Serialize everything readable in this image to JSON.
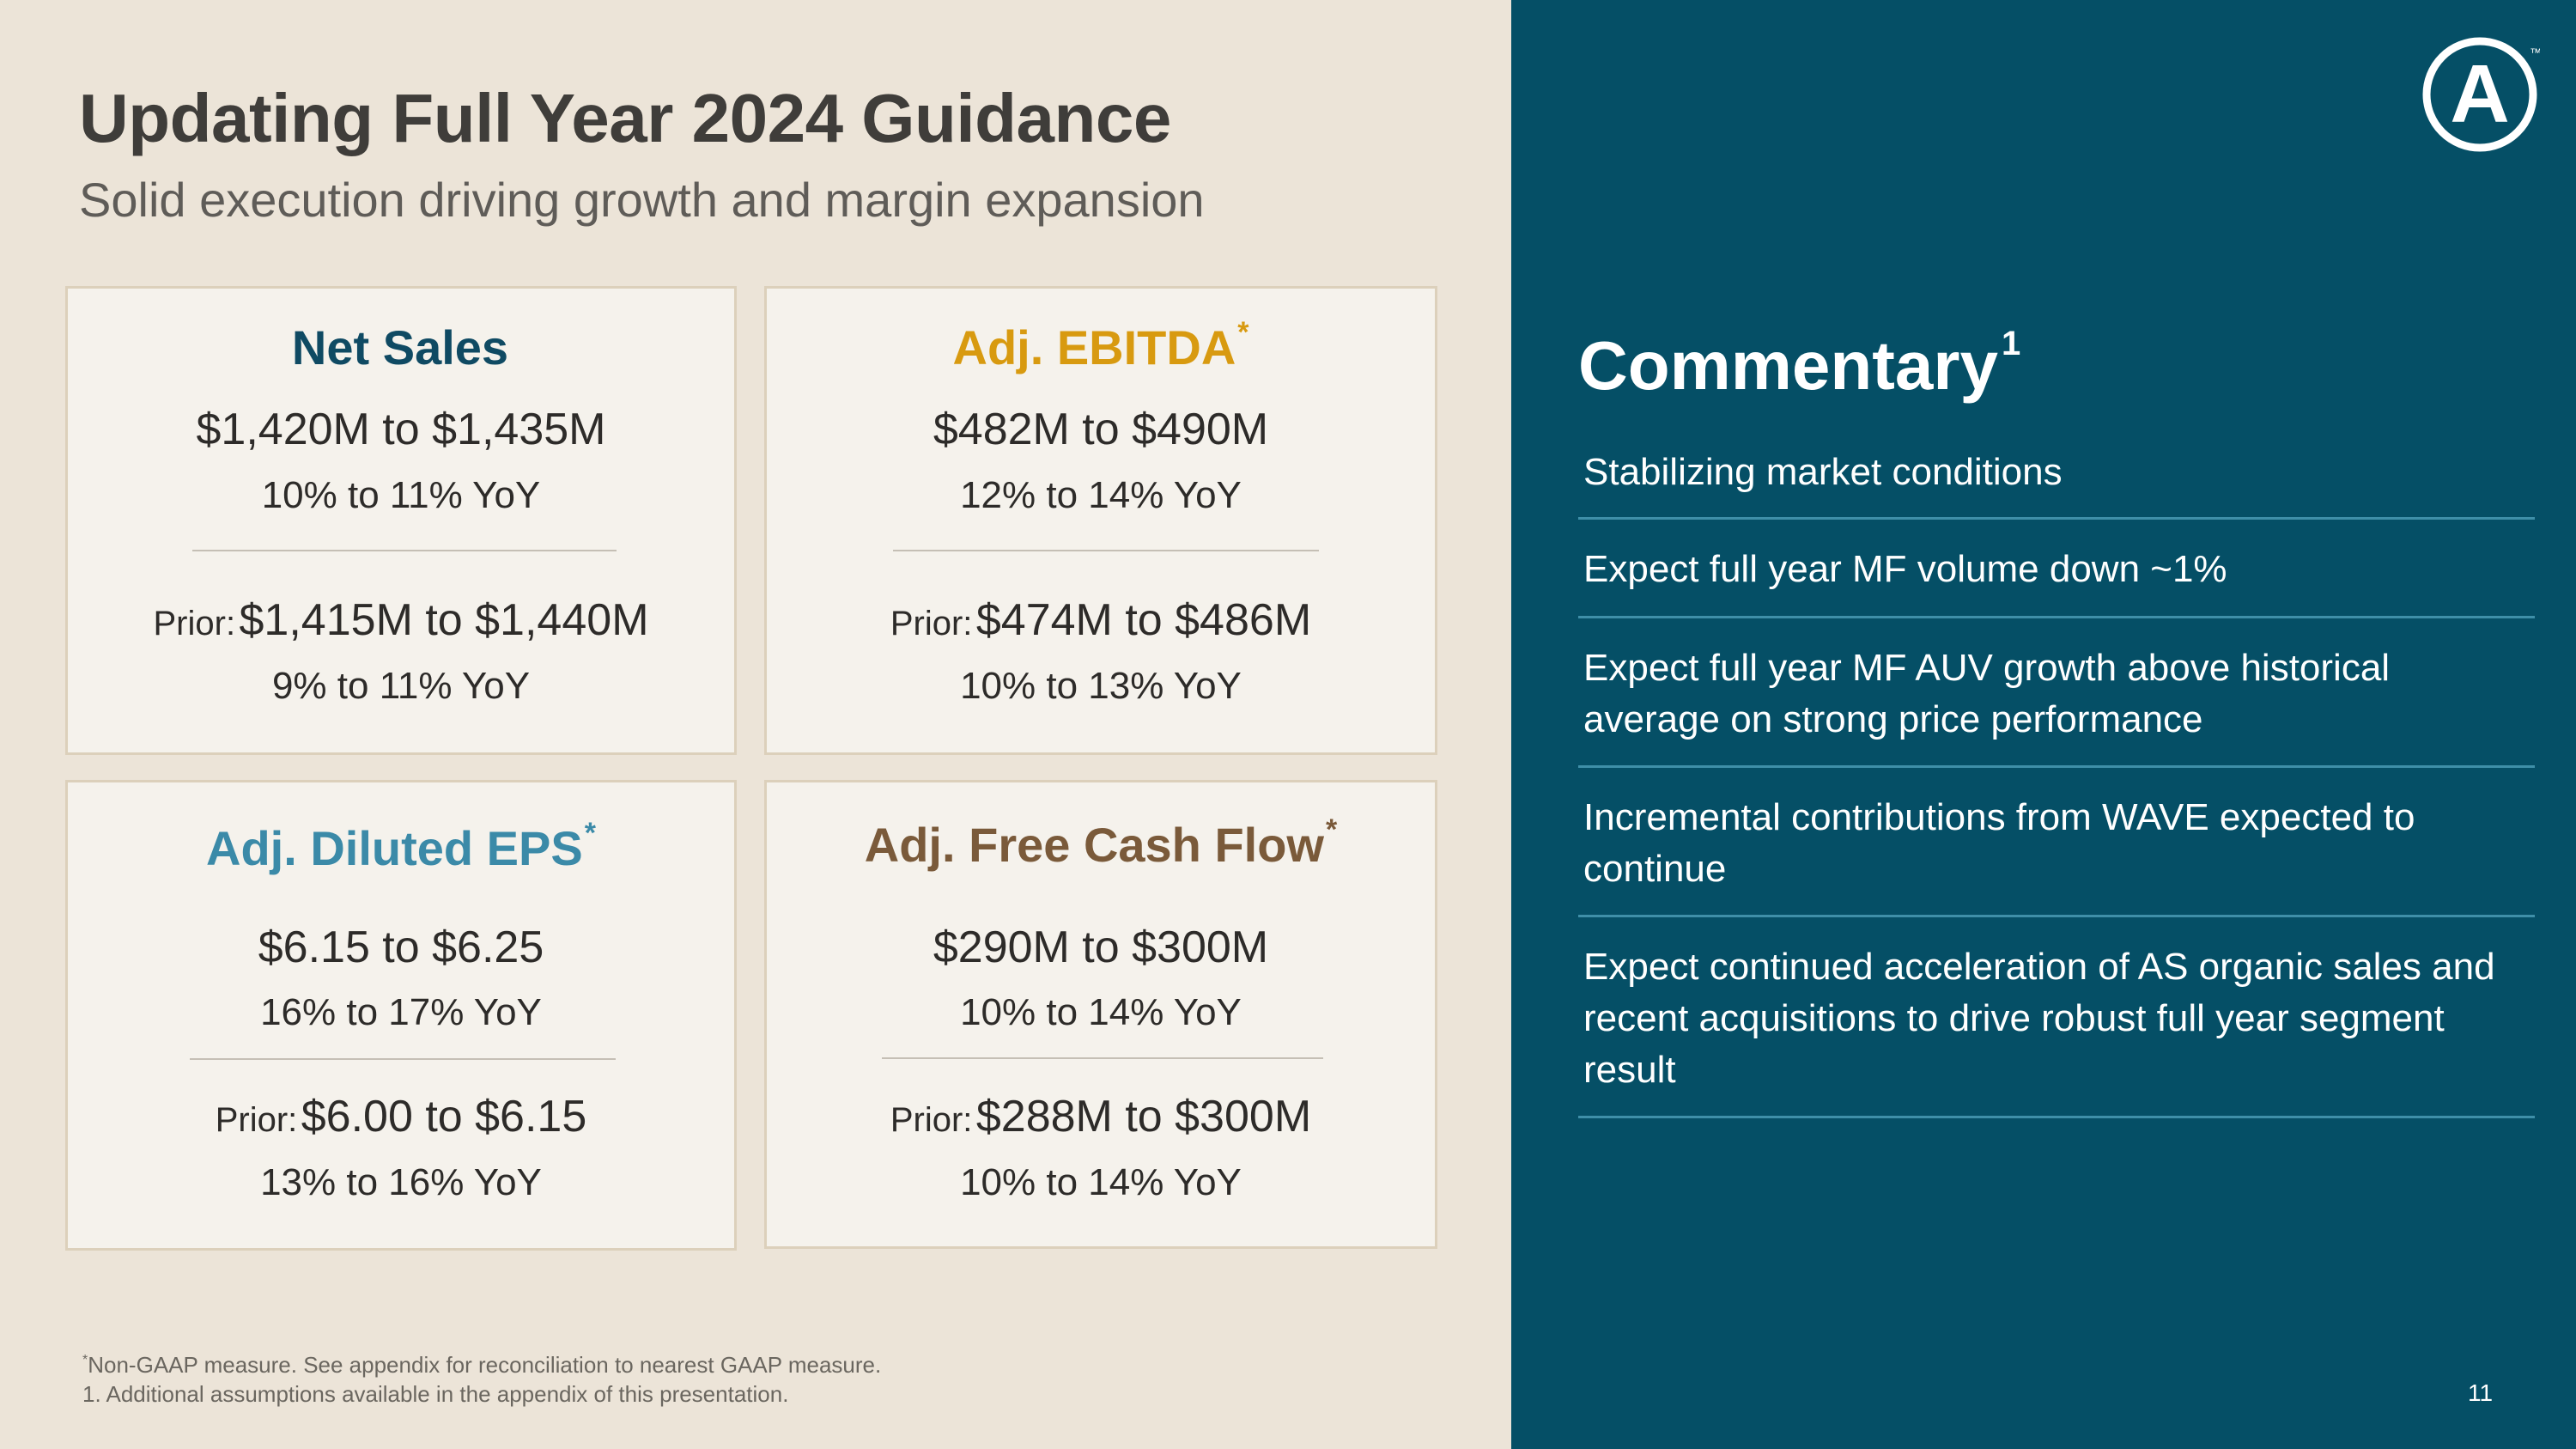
{
  "header": {
    "title": "Updating Full Year 2024 Guidance",
    "subtitle": "Solid execution driving growth and margin expansion"
  },
  "cards": [
    {
      "title": "Net Sales",
      "asterisk": "",
      "color": "#0f4a63",
      "current": "$1,420M to $1,435M",
      "current_yoy": "10% to 11% YoY",
      "prior_label": "Prior:",
      "prior": "$1,415M to $1,440M",
      "prior_yoy": "9% to 11% YoY"
    },
    {
      "title": "Adj. EBITDA",
      "asterisk": "*",
      "color": "#d89a10",
      "current": "$482M to $490M",
      "current_yoy": "12% to 14% YoY",
      "prior_label": "Prior:",
      "prior": "$474M to $486M",
      "prior_yoy": "10% to 13% YoY"
    },
    {
      "title": "Adj. Diluted EPS",
      "asterisk": "*",
      "color": "#3b8aa8",
      "current": "$6.15 to $6.25",
      "current_yoy": "16% to 17% YoY",
      "prior_label": "Prior:",
      "prior": "$6.00 to $6.15",
      "prior_yoy": "13% to 16% YoY"
    },
    {
      "title": "Adj. Free Cash Flow",
      "asterisk": "*",
      "color": "#7a5a3a",
      "current": "$290M to $300M",
      "current_yoy": "10% to 14% YoY",
      "prior_label": "Prior:",
      "prior": "$288M to $300M",
      "prior_yoy": "10% to 14% YoY"
    }
  ],
  "commentary": {
    "title": "Commentary",
    "title_sup": "1",
    "items": [
      "Stabilizing market conditions",
      "Expect full year MF volume down ~1%",
      "Expect full year MF AUV growth above historical average on strong price performance",
      "Incremental contributions from WAVE expected to continue",
      "Expect continued acceleration of AS organic sales and recent acquisitions to drive robust full year segment result"
    ]
  },
  "footnotes": {
    "note1_marker": "*",
    "note1": "Non-GAAP measure. See appendix for reconciliation to nearest GAAP measure.",
    "note2": "1. Additional assumptions available in the appendix of this presentation."
  },
  "page_number": "11",
  "logo": {
    "icon": "company-logo-icon",
    "letter": "A",
    "mark": "™"
  },
  "colors": {
    "left_bg": "#ece4d8",
    "right_bg": "#054f66",
    "divider": "#3f8fa8"
  }
}
